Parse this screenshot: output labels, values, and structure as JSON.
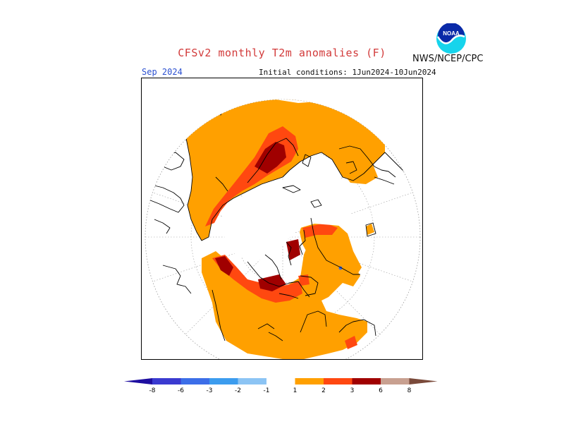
{
  "header": {
    "title": "CFSv2 monthly T2m anomalies (F)",
    "agency": "NWS/NCEP/CPC",
    "logo_icon": "noaa-logo-icon",
    "logo_text": "NOAA"
  },
  "map": {
    "month": "Sep 2024",
    "initial_conditions": "Initial conditions: 1Jun2024-10Jun2024",
    "projection": "north-polar-stereographic"
  },
  "colorbar": {
    "ticks": [
      "-8",
      "-6",
      "-3",
      "-2",
      "-1",
      "1",
      "2",
      "3",
      "6",
      "8"
    ],
    "colors": {
      "lt_-8": "#1e0ea0",
      "-8_-6": "#3a3ad0",
      "-6_-3": "#3c6ee8",
      "-3_-2": "#3c9cee",
      "-2_-1": "#8cc4f4",
      "-1_1": "#ffffff",
      "1_2": "#ffa000",
      "2_3": "#ff4810",
      "3_6": "#a00000",
      "6_8": "#c8a090",
      "gt_8": "#7a4a3a"
    }
  }
}
